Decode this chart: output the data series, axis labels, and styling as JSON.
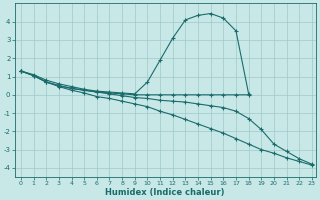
{
  "xlabel": "Humidex (Indice chaleur)",
  "xlim": [
    -0.5,
    23.3
  ],
  "ylim": [
    -4.5,
    5.0
  ],
  "yticks": [
    -4,
    -3,
    -2,
    -1,
    0,
    1,
    2,
    3,
    4
  ],
  "xticks": [
    0,
    1,
    2,
    3,
    4,
    5,
    6,
    7,
    8,
    9,
    10,
    11,
    12,
    13,
    14,
    15,
    16,
    17,
    18,
    19,
    20,
    21,
    22,
    23
  ],
  "bg_color": "#c8e8e8",
  "grid_color": "#a0c8c8",
  "line_color": "#1a6b6b",
  "lines": [
    {
      "x": [
        0,
        1,
        2,
        3,
        4,
        5,
        6,
        7,
        8,
        9,
        10,
        11,
        12,
        13,
        14,
        15,
        16,
        17,
        18
      ],
      "y": [
        1.3,
        1.1,
        0.8,
        0.6,
        0.45,
        0.3,
        0.2,
        0.15,
        0.1,
        0.05,
        0.7,
        1.9,
        3.1,
        4.1,
        4.35,
        4.45,
        4.2,
        3.5,
        0.05
      ]
    },
    {
      "x": [
        0,
        1,
        2,
        3,
        4,
        5,
        6,
        7,
        8,
        9,
        10,
        11,
        12,
        13,
        14,
        15,
        16,
        17,
        18
      ],
      "y": [
        1.3,
        1.05,
        0.7,
        0.5,
        0.35,
        0.25,
        0.15,
        0.1,
        0.05,
        0.0,
        0.0,
        0.0,
        0.0,
        0.0,
        0.0,
        0.0,
        0.0,
        0.0,
        0.0
      ]
    },
    {
      "x": [
        0,
        1,
        2,
        3,
        4,
        5,
        6,
        7,
        8,
        9,
        10,
        11,
        12,
        13,
        14,
        15,
        16,
        17,
        18,
        19,
        20,
        21,
        22,
        23
      ],
      "y": [
        1.3,
        1.05,
        0.7,
        0.45,
        0.25,
        0.1,
        -0.1,
        -0.2,
        -0.35,
        -0.5,
        -0.65,
        -0.9,
        -1.1,
        -1.35,
        -1.6,
        -1.85,
        -2.1,
        -2.4,
        -2.7,
        -3.0,
        -3.2,
        -3.45,
        -3.65,
        -3.85
      ]
    },
    {
      "x": [
        0,
        1,
        2,
        3,
        4,
        5,
        6,
        7,
        8,
        9,
        10,
        11,
        12,
        13,
        14,
        15,
        16,
        17,
        18,
        19,
        20,
        21,
        22,
        23
      ],
      "y": [
        1.3,
        1.05,
        0.7,
        0.5,
        0.35,
        0.25,
        0.15,
        0.05,
        -0.05,
        -0.15,
        -0.2,
        -0.3,
        -0.35,
        -0.4,
        -0.5,
        -0.6,
        -0.7,
        -0.9,
        -1.3,
        -1.9,
        -2.7,
        -3.1,
        -3.5,
        -3.8
      ]
    }
  ],
  "figsize": [
    3.2,
    2.0
  ],
  "dpi": 100
}
